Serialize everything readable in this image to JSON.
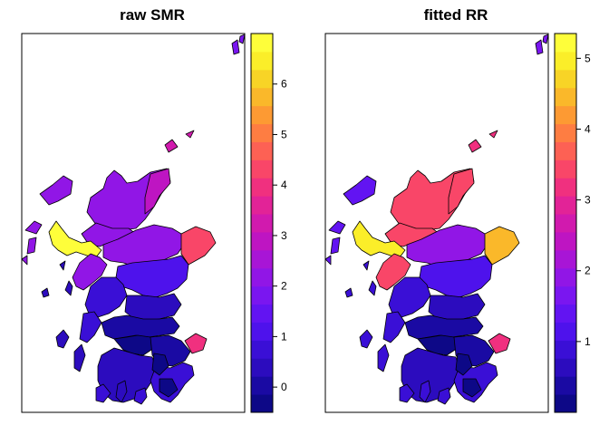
{
  "panels": [
    {
      "title": "raw SMR",
      "legend": {
        "min": -0.5,
        "max": 7.0,
        "ticks": [
          0,
          1,
          2,
          3,
          4,
          5,
          6
        ],
        "tick_labels": [
          "0",
          "1",
          "2",
          "3",
          "4",
          "5",
          "6"
        ]
      }
    },
    {
      "title": "fitted RR",
      "legend": {
        "min": 0.0,
        "max": 5.35,
        "ticks": [
          1,
          2,
          3,
          4,
          5
        ],
        "tick_labels": [
          "1",
          "2",
          "3",
          "4",
          "5"
        ]
      }
    }
  ],
  "palette": [
    "#0D0887",
    "#1A0AA3",
    "#2C0CBE",
    "#3A0FD6",
    "#4E12EC",
    "#6214F2",
    "#7A16F0",
    "#9116E6",
    "#A815D6",
    "#BE15C2",
    "#D11AAE",
    "#E22397",
    "#F0307F",
    "#F94668",
    "#FD6154",
    "#FE7D42",
    "#FD9A33",
    "#FAB82A",
    "#F8D426",
    "#FBEE29",
    "#FEFE3A"
  ],
  "legend_palette_note": "",
  "region_colors_raw": {
    "shetland": "#7A16F0",
    "orkney": "#D11AAE",
    "western_isles": "#9116E6",
    "highland_north": "#9116E6",
    "highland_east": "#BE15C2",
    "skye": "#FEFE3A",
    "highland_west": "#9116E6",
    "grampian": "#9116E6",
    "aberdeen": "#F94668",
    "tayside": "#4E12EC",
    "argyll": "#3A0FD6",
    "fife": "#2C0CBE",
    "lothian": "#1A0AA3",
    "east_coast": "#F0307F",
    "clyde": "#1A0AA3",
    "borders": "#2C0CBE",
    "dumfries": "#3A0FD6",
    "glasgow": "#0D0887",
    "small_dark": "#0D0887",
    "islands": "#2C0CBE"
  },
  "region_colors_fitted": {
    "shetland": "#7A16F0",
    "orkney": "#F0307F",
    "western_isles": "#6214F2",
    "highland_north": "#F94668",
    "highland_east": "#F94668",
    "skye": "#FBEE29",
    "highland_west": "#F94668",
    "grampian": "#9116E6",
    "aberdeen": "#FAB82A",
    "tayside": "#4E12EC",
    "argyll": "#3A0FD6",
    "fife": "#2C0CBE",
    "lothian": "#1A0AA3",
    "east_coast": "#F0307F",
    "clyde": "#1A0AA3",
    "borders": "#2C0CBE",
    "dumfries": "#3A0FD6",
    "glasgow": "#0D0887",
    "small_dark": "#0D0887",
    "islands": "#3A0FD6"
  }
}
